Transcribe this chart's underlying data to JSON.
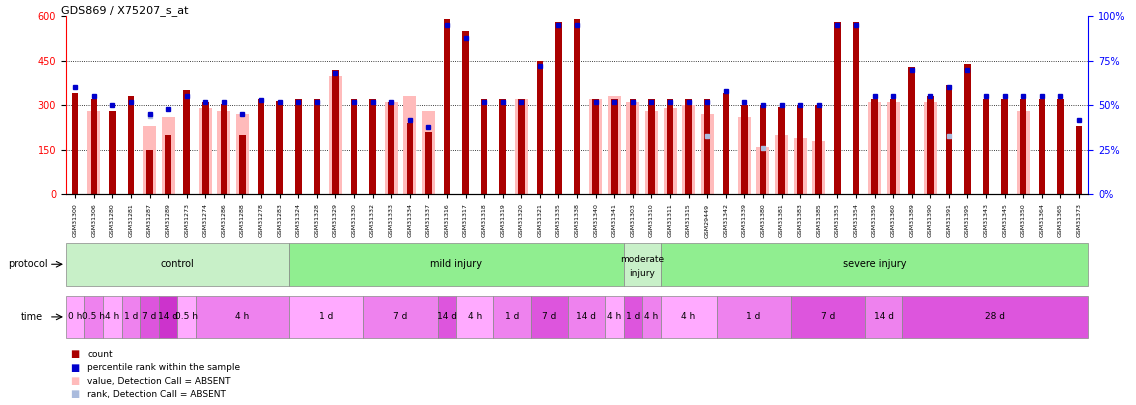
{
  "title": "GDS869 / X75207_s_at",
  "samples": [
    "GSM31300",
    "GSM31306",
    "GSM31280",
    "GSM31281",
    "GSM31287",
    "GSM31289",
    "GSM31273",
    "GSM31274",
    "GSM31286",
    "GSM31288",
    "GSM31278",
    "GSM31283",
    "GSM31324",
    "GSM31328",
    "GSM31329",
    "GSM31330",
    "GSM31332",
    "GSM31333",
    "GSM31334",
    "GSM31337",
    "GSM31316",
    "GSM31317",
    "GSM31318",
    "GSM31319",
    "GSM31320",
    "GSM31321",
    "GSM31335",
    "GSM31338",
    "GSM31340",
    "GSM31341",
    "GSM31303",
    "GSM31310",
    "GSM31311",
    "GSM31315",
    "GSM29449",
    "GSM31342",
    "GSM31339",
    "GSM31380",
    "GSM31381",
    "GSM31383",
    "GSM31385",
    "GSM31353",
    "GSM31354",
    "GSM31359",
    "GSM31360",
    "GSM31389",
    "GSM31390",
    "GSM31391",
    "GSM31395",
    "GSM31343",
    "GSM31345",
    "GSM31350",
    "GSM31364",
    "GSM31365",
    "GSM31373"
  ],
  "count_values": [
    340,
    320,
    280,
    330,
    150,
    200,
    350,
    310,
    305,
    200,
    320,
    315,
    320,
    320,
    420,
    320,
    320,
    310,
    240,
    210,
    590,
    550,
    320,
    320,
    320,
    450,
    580,
    590,
    320,
    320,
    320,
    320,
    320,
    320,
    320,
    340,
    300,
    300,
    295,
    300,
    300,
    580,
    580,
    320,
    320,
    430,
    330,
    370,
    440,
    320,
    320,
    320,
    320,
    320,
    230
  ],
  "rank_pct": [
    60,
    55,
    50,
    52,
    45,
    48,
    55,
    52,
    52,
    45,
    53,
    52,
    52,
    52,
    68,
    52,
    52,
    52,
    42,
    38,
    95,
    88,
    52,
    52,
    52,
    72,
    95,
    95,
    52,
    52,
    52,
    52,
    52,
    52,
    52,
    58,
    52,
    50,
    50,
    50,
    50,
    95,
    95,
    55,
    55,
    70,
    55,
    60,
    70,
    55,
    55,
    55,
    55,
    55,
    42
  ],
  "absent_count": [
    null,
    280,
    null,
    null,
    230,
    260,
    null,
    290,
    280,
    270,
    null,
    null,
    null,
    null,
    400,
    null,
    null,
    310,
    330,
    280,
    null,
    null,
    null,
    null,
    320,
    null,
    null,
    null,
    320,
    330,
    310,
    280,
    290,
    300,
    270,
    null,
    260,
    160,
    200,
    190,
    180,
    null,
    null,
    310,
    310,
    null,
    310,
    null,
    null,
    null,
    null,
    280,
    null,
    null,
    null
  ],
  "absent_rank_pct": [
    null,
    null,
    null,
    null,
    44,
    null,
    null,
    null,
    null,
    null,
    null,
    null,
    null,
    null,
    null,
    null,
    null,
    null,
    null,
    null,
    null,
    null,
    null,
    null,
    null,
    null,
    null,
    null,
    null,
    null,
    null,
    null,
    null,
    null,
    33,
    null,
    null,
    26,
    null,
    null,
    null,
    null,
    null,
    null,
    null,
    null,
    null,
    33,
    null,
    null,
    null,
    null,
    null,
    null,
    null
  ],
  "protocols": [
    {
      "label": "control",
      "start": 0,
      "end": 11,
      "color": "#c8f0c8"
    },
    {
      "label": "mild injury",
      "start": 12,
      "end": 29,
      "color": "#90ee90"
    },
    {
      "label": "moderate\ninjury",
      "start": 30,
      "end": 31,
      "color": "#c8f0c8"
    },
    {
      "label": "severe injury",
      "start": 32,
      "end": 54,
      "color": "#90ee90"
    }
  ],
  "times": [
    {
      "label": "0 h",
      "start": 0,
      "end": 0,
      "color": "#ffaaff"
    },
    {
      "label": "0.5 h",
      "start": 1,
      "end": 1,
      "color": "#ee82ee"
    },
    {
      "label": "4 h",
      "start": 2,
      "end": 2,
      "color": "#ffaaff"
    },
    {
      "label": "1 d",
      "start": 3,
      "end": 3,
      "color": "#ee82ee"
    },
    {
      "label": "7 d",
      "start": 4,
      "end": 4,
      "color": "#dd55dd"
    },
    {
      "label": "14 d",
      "start": 5,
      "end": 5,
      "color": "#cc33cc"
    },
    {
      "label": "0.5 h",
      "start": 6,
      "end": 6,
      "color": "#ffaaff"
    },
    {
      "label": "4 h",
      "start": 7,
      "end": 11,
      "color": "#ee82ee"
    },
    {
      "label": "1 d",
      "start": 12,
      "end": 15,
      "color": "#ffaaff"
    },
    {
      "label": "7 d",
      "start": 16,
      "end": 19,
      "color": "#ee82ee"
    },
    {
      "label": "14 d",
      "start": 20,
      "end": 20,
      "color": "#dd55dd"
    },
    {
      "label": "4 h",
      "start": 21,
      "end": 22,
      "color": "#ffaaff"
    },
    {
      "label": "1 d",
      "start": 23,
      "end": 24,
      "color": "#ee82ee"
    },
    {
      "label": "7 d",
      "start": 25,
      "end": 26,
      "color": "#dd55dd"
    },
    {
      "label": "14 d",
      "start": 27,
      "end": 28,
      "color": "#ee82ee"
    },
    {
      "label": "4 h",
      "start": 29,
      "end": 29,
      "color": "#ffaaff"
    },
    {
      "label": "1 d",
      "start": 30,
      "end": 30,
      "color": "#dd55dd"
    },
    {
      "label": "4 h",
      "start": 31,
      "end": 31,
      "color": "#ee82ee"
    },
    {
      "label": "4 h",
      "start": 32,
      "end": 34,
      "color": "#ffaaff"
    },
    {
      "label": "1 d",
      "start": 35,
      "end": 38,
      "color": "#ee82ee"
    },
    {
      "label": "7 d",
      "start": 39,
      "end": 42,
      "color": "#dd55dd"
    },
    {
      "label": "14 d",
      "start": 43,
      "end": 44,
      "color": "#ee82ee"
    },
    {
      "label": "28 d",
      "start": 45,
      "end": 54,
      "color": "#dd55dd"
    }
  ],
  "ylim_left": [
    0,
    600
  ],
  "ylim_right": [
    0,
    100
  ],
  "yticks_left": [
    0,
    150,
    300,
    450,
    600
  ],
  "yticks_right": [
    0,
    25,
    50,
    75,
    100
  ],
  "bar_color": "#aa0000",
  "rank_color": "#0000cc",
  "absent_bar_color": "#ffbbbb",
  "absent_rank_color": "#aabbdd",
  "bg_color": "#ffffff"
}
